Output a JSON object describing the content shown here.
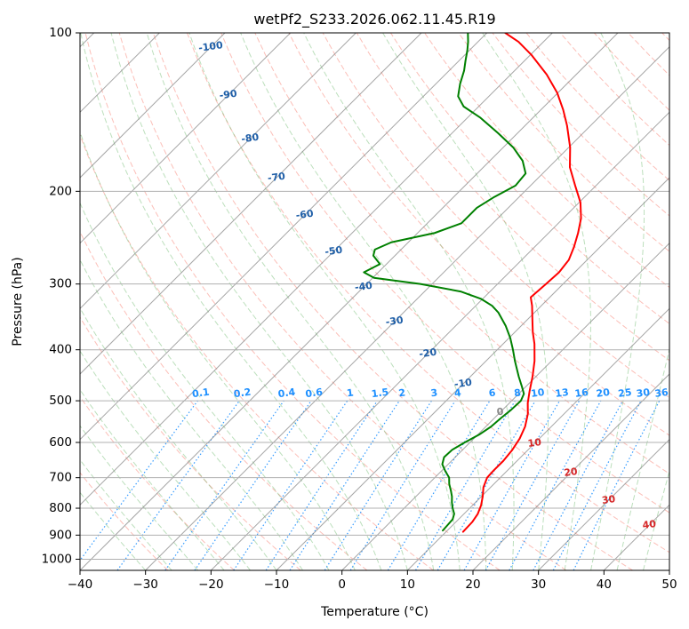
{
  "chart_data": {
    "type": "line",
    "title": "wetPf2_S233.2026.062.11.45.R19",
    "xlabel": "Temperature (°C)",
    "ylabel": "Pressure (hPa)",
    "xlim": [
      -40,
      50
    ],
    "ylim": [
      1050,
      100
    ],
    "y_scale": "log",
    "skew": 45,
    "x_ticks": [
      -40,
      -30,
      -20,
      -10,
      0,
      10,
      20,
      30,
      40,
      50
    ],
    "y_ticks": [
      1000,
      900,
      800,
      700,
      600,
      500,
      400,
      300,
      200,
      100
    ],
    "grid": true,
    "series": [
      {
        "color": "#ff0000",
        "points": [
          [
            887,
            12.6
          ],
          [
            850,
            12.5
          ],
          [
            820,
            12.1
          ],
          [
            790,
            11.3
          ],
          [
            760,
            10.2
          ],
          [
            730,
            8.9
          ],
          [
            700,
            8.0
          ],
          [
            680,
            7.9
          ],
          [
            650,
            7.9
          ],
          [
            620,
            7.6
          ],
          [
            590,
            7.0
          ],
          [
            560,
            6.0
          ],
          [
            530,
            4.5
          ],
          [
            505,
            2.8
          ],
          [
            480,
            1.3
          ],
          [
            450,
            -0.5
          ],
          [
            420,
            -2.6
          ],
          [
            390,
            -5.2
          ],
          [
            370,
            -7.3
          ],
          [
            350,
            -9.3
          ],
          [
            330,
            -11.4
          ],
          [
            318,
            -12.9
          ],
          [
            300,
            -12.6
          ],
          [
            285,
            -12.4
          ],
          [
            270,
            -12.8
          ],
          [
            255,
            -14.0
          ],
          [
            240,
            -15.5
          ],
          [
            225,
            -17.3
          ],
          [
            210,
            -19.8
          ],
          [
            195,
            -23.2
          ],
          [
            180,
            -26.8
          ],
          [
            165,
            -29.8
          ],
          [
            150,
            -33.6
          ],
          [
            140,
            -36.6
          ],
          [
            130,
            -40.1
          ],
          [
            120,
            -44.5
          ],
          [
            110,
            -49.9
          ],
          [
            104,
            -53.8
          ],
          [
            100,
            -57.2
          ]
        ]
      },
      {
        "color": "#008000",
        "points": [
          [
            882,
            9.3
          ],
          [
            860,
            9.2
          ],
          [
            840,
            9.1
          ],
          [
            820,
            8.5
          ],
          [
            800,
            7.4
          ],
          [
            780,
            6.4
          ],
          [
            760,
            5.5
          ],
          [
            740,
            4.4
          ],
          [
            720,
            3.2
          ],
          [
            700,
            2.2
          ],
          [
            680,
            0.6
          ],
          [
            660,
            -0.9
          ],
          [
            640,
            -1.7
          ],
          [
            620,
            -1.6
          ],
          [
            600,
            -0.8
          ],
          [
            580,
            0.2
          ],
          [
            560,
            0.8
          ],
          [
            540,
            1.0
          ],
          [
            520,
            1.3
          ],
          [
            500,
            1.4
          ],
          [
            485,
            0.8
          ],
          [
            470,
            -0.6
          ],
          [
            450,
            -2.6
          ],
          [
            420,
            -5.6
          ],
          [
            400,
            -7.6
          ],
          [
            380,
            -9.8
          ],
          [
            360,
            -12.4
          ],
          [
            340,
            -15.5
          ],
          [
            330,
            -17.5
          ],
          [
            320,
            -20.3
          ],
          [
            310,
            -24.5
          ],
          [
            300,
            -31.8
          ],
          [
            292,
            -39.8
          ],
          [
            285,
            -42.2
          ],
          [
            275,
            -41.0
          ],
          [
            265,
            -43.3
          ],
          [
            258,
            -44.0
          ],
          [
            250,
            -42.6
          ],
          [
            240,
            -37.4
          ],
          [
            230,
            -34.8
          ],
          [
            215,
            -34.8
          ],
          [
            205,
            -33.8
          ],
          [
            195,
            -32.3
          ],
          [
            185,
            -32.6
          ],
          [
            175,
            -35.0
          ],
          [
            165,
            -38.5
          ],
          [
            155,
            -43.0
          ],
          [
            145,
            -48.0
          ],
          [
            138,
            -52.3
          ],
          [
            132,
            -54.7
          ],
          [
            125,
            -56.3
          ],
          [
            118,
            -57.7
          ],
          [
            113,
            -59.0
          ],
          [
            108,
            -60.3
          ],
          [
            104,
            -61.5
          ],
          [
            100,
            -62.9
          ]
        ]
      }
    ],
    "mixing_ratio_labels": [
      "0.1",
      "0.2",
      "0.4",
      "0.6",
      "1",
      "1.5",
      "2",
      "3",
      "4",
      "6",
      "8",
      "10",
      "13",
      "16",
      "20",
      "25",
      "30",
      "36"
    ],
    "isotherm_labels": [
      "-100",
      "-90",
      "-80",
      "-70",
      "-60",
      "-50",
      "-40",
      "-30",
      "-20",
      "-10",
      "0",
      "10",
      "20",
      "30",
      "40"
    ]
  },
  "colors": {
    "temperature": "#ff0000",
    "dewpoint": "#008000",
    "isobar_grid": "#b0b0b0",
    "dry_adiabat": "#fa8072",
    "moist_adiabat": "#6bb86b",
    "mixing_ratio": "#1e90ff",
    "isotherm_label_cold": "#1f5fa8",
    "isotherm_label_warm": "#d62728"
  }
}
